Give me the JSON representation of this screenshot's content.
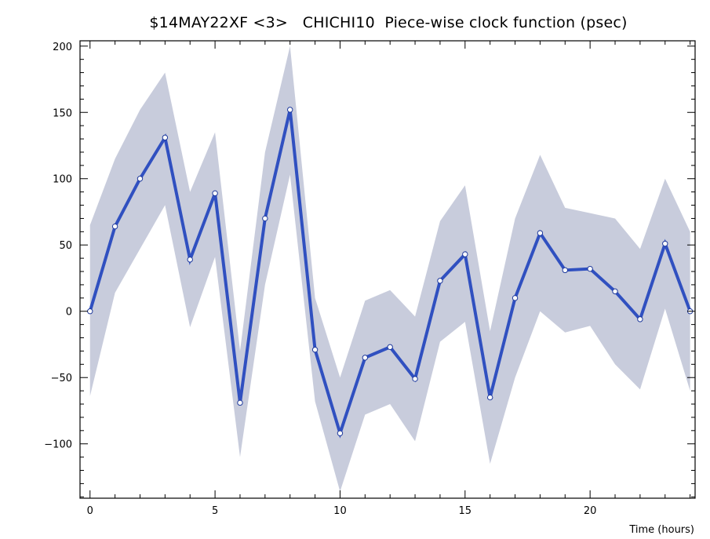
{
  "chart_data": {
    "type": "line",
    "title": "$14MAY22XF <3>   CHICHI10  Piece-wise clock function (psec)",
    "xlabel": "Time (hours)",
    "ylabel": "",
    "xlim": [
      -0.4,
      24.2
    ],
    "ylim": [
      -141,
      204
    ],
    "xticks": [
      0,
      5,
      10,
      15,
      20
    ],
    "yticks": [
      -100,
      -50,
      0,
      50,
      100,
      150,
      200
    ],
    "grid": false,
    "colors": {
      "line": "#3050c0",
      "band": "#c8ccdc",
      "frame": "#000000"
    },
    "series": [
      {
        "x": [
          0,
          1,
          2,
          3,
          4,
          5,
          6,
          7,
          8,
          9,
          10,
          11,
          12,
          13,
          14,
          15,
          16,
          17,
          18,
          19,
          20,
          21,
          22,
          23,
          24
        ],
        "values": [
          0,
          64,
          100,
          131,
          39,
          89,
          -69,
          70,
          152,
          -29,
          -92,
          -35,
          -27,
          -51,
          23,
          43,
          -65,
          10,
          59,
          31,
          32,
          15,
          -6,
          51,
          0
        ],
        "upper": [
          65,
          115,
          152,
          180,
          90,
          135,
          -30,
          120,
          200,
          10,
          -50,
          8,
          16,
          -4,
          68,
          95,
          -15,
          70,
          118,
          78,
          74,
          70,
          47,
          100,
          60
        ],
        "lower": [
          -64,
          14,
          47,
          80,
          -12,
          41,
          -110,
          20,
          103,
          -68,
          -136,
          -78,
          -70,
          -98,
          -23,
          -8,
          -115,
          -50,
          0,
          -16,
          -11,
          -40,
          -59,
          2,
          -60
        ]
      }
    ]
  }
}
